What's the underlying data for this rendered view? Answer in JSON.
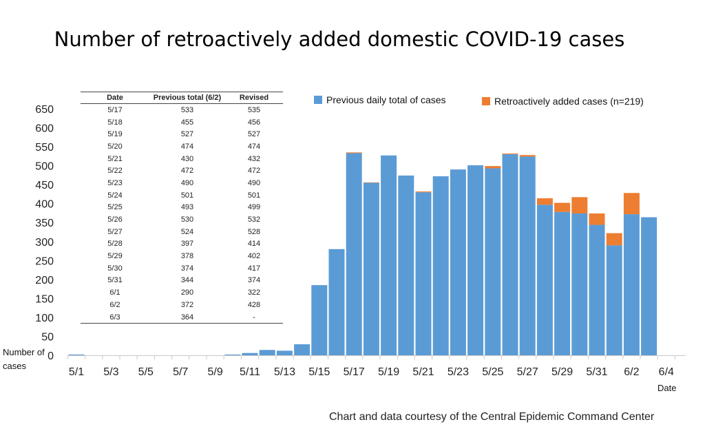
{
  "title": "Number of retroactively added domestic COVID-19 cases",
  "credit": "Chart and data courtesy of the Central Epidemic Command Center",
  "chart_data": {
    "type": "bar",
    "stacked": true,
    "title": "Number of retroactively added domestic COVID-19 cases",
    "xlabel": "Date",
    "ylabel": "Number of cases",
    "ylim": [
      0,
      650
    ],
    "yticks": [
      0,
      50,
      100,
      150,
      200,
      250,
      300,
      350,
      400,
      450,
      500,
      550,
      600,
      650
    ],
    "grid": false,
    "legend_position": "top-right",
    "categories": [
      "5/1",
      "5/2",
      "5/3",
      "5/4",
      "5/5",
      "5/6",
      "5/7",
      "5/8",
      "5/9",
      "5/10",
      "5/11",
      "5/12",
      "5/13",
      "5/14",
      "5/15",
      "5/16",
      "5/17",
      "5/18",
      "5/19",
      "5/20",
      "5/21",
      "5/22",
      "5/23",
      "5/24",
      "5/25",
      "5/26",
      "5/27",
      "5/28",
      "5/29",
      "5/30",
      "5/31",
      "6/1",
      "6/2",
      "6/3"
    ],
    "xtick_labels": [
      "5/1",
      "5/3",
      "5/5",
      "5/7",
      "5/9",
      "5/11",
      "5/13",
      "5/15",
      "5/17",
      "5/19",
      "5/21",
      "5/23",
      "5/25",
      "5/27",
      "5/29",
      "5/31",
      "6/2",
      "6/4"
    ],
    "series": [
      {
        "name": "Previous daily total of cases",
        "color": "#5b9bd5",
        "values": [
          2,
          0,
          0,
          0,
          0,
          0,
          0,
          0,
          0,
          2,
          6,
          14,
          12,
          29,
          185,
          280,
          533,
          455,
          527,
          474,
          430,
          472,
          490,
          501,
          493,
          530,
          524,
          397,
          378,
          374,
          344,
          290,
          372,
          364
        ]
      },
      {
        "name": "Retroactively added cases",
        "label_suffix": "(n=219)",
        "color": "#ed7d31",
        "values": [
          0,
          0,
          0,
          0,
          0,
          0,
          0,
          0,
          0,
          0,
          0,
          0,
          0,
          0,
          0,
          0,
          2,
          1,
          0,
          0,
          2,
          0,
          0,
          0,
          6,
          2,
          4,
          17,
          24,
          43,
          30,
          32,
          56,
          0
        ]
      }
    ],
    "table": {
      "headers": [
        "Date",
        "Previous total (6/2)",
        "Revised"
      ],
      "rows": [
        [
          "5/17",
          "533",
          "535"
        ],
        [
          "5/18",
          "455",
          "456"
        ],
        [
          "5/19",
          "527",
          "527"
        ],
        [
          "5/20",
          "474",
          "474"
        ],
        [
          "5/21",
          "430",
          "432"
        ],
        [
          "5/22",
          "472",
          "472"
        ],
        [
          "5/23",
          "490",
          "490"
        ],
        [
          "5/24",
          "501",
          "501"
        ],
        [
          "5/25",
          "493",
          "499"
        ],
        [
          "5/26",
          "530",
          "532"
        ],
        [
          "5/27",
          "524",
          "528"
        ],
        [
          "5/28",
          "397",
          "414"
        ],
        [
          "5/29",
          "378",
          "402"
        ],
        [
          "5/30",
          "374",
          "417"
        ],
        [
          "5/31",
          "344",
          "374"
        ],
        [
          "6/1",
          "290",
          "322"
        ],
        [
          "6/2",
          "372",
          "428"
        ],
        [
          "6/3",
          "364",
          "-"
        ]
      ]
    }
  }
}
